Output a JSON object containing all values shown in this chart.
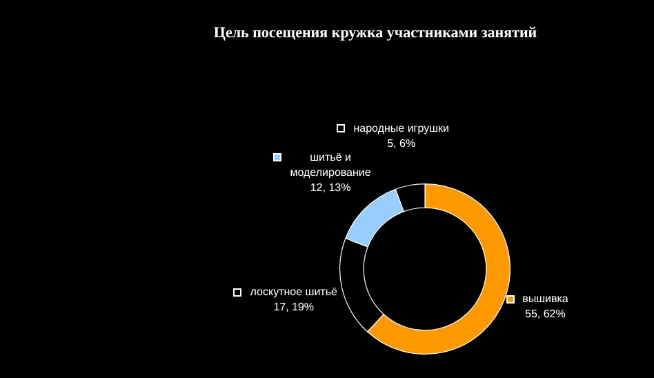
{
  "chart_data": {
    "type": "donut",
    "title": "Цель посещения кружка участниками занятий",
    "categories": [
      "вышивка",
      "лоскутное шитьё",
      "шитьё и моделирование",
      "народные игрушки"
    ],
    "values": [
      55,
      17,
      12,
      5
    ],
    "colors": [
      "#ff9900",
      "#000000",
      "#99ccff",
      "#000000"
    ],
    "value_labels": [
      "55, 62%",
      "17, 19%",
      "12, 13%",
      "5, 6%"
    ],
    "legend": "top left"
  }
}
